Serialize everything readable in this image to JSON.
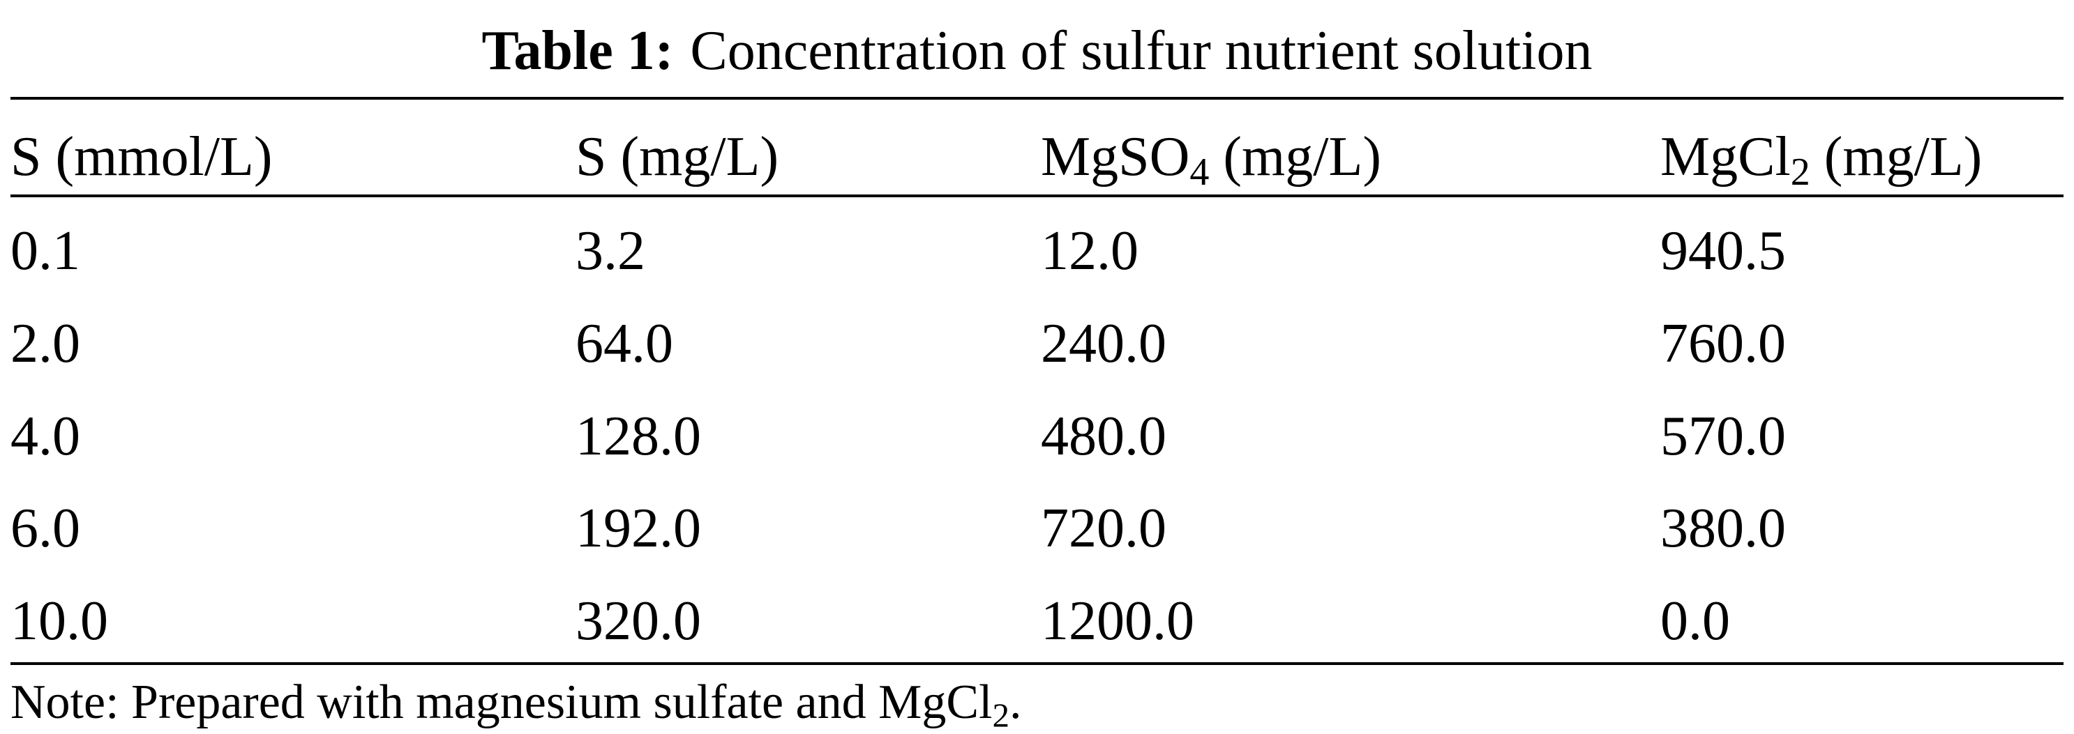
{
  "caption": {
    "label": "Table 1:",
    "title": "Concentration of sulfur nutrient solution"
  },
  "table": {
    "header": [
      {
        "main": "S (mmol/L)"
      },
      {
        "main": "S (mg/L)"
      },
      {
        "main": "MgSO",
        "sub": "4",
        "rest": " (mg/L)"
      },
      {
        "main": "MgCl",
        "sub": "2",
        "rest": " (mg/L)"
      }
    ],
    "rows": [
      [
        "0.1",
        "3.2",
        "12.0",
        "940.5"
      ],
      [
        "2.0",
        "64.0",
        "240.0",
        "760.0"
      ],
      [
        "4.0",
        "128.0",
        "480.0",
        "570.0"
      ],
      [
        "6.0",
        "192.0",
        "720.0",
        "380.0"
      ],
      [
        "10.0",
        "320.0",
        "1200.0",
        "0.0"
      ]
    ]
  },
  "note": {
    "main": "Note: Prepared with magnesium sulfate and MgCl",
    "sub": "2",
    "rest": "."
  }
}
